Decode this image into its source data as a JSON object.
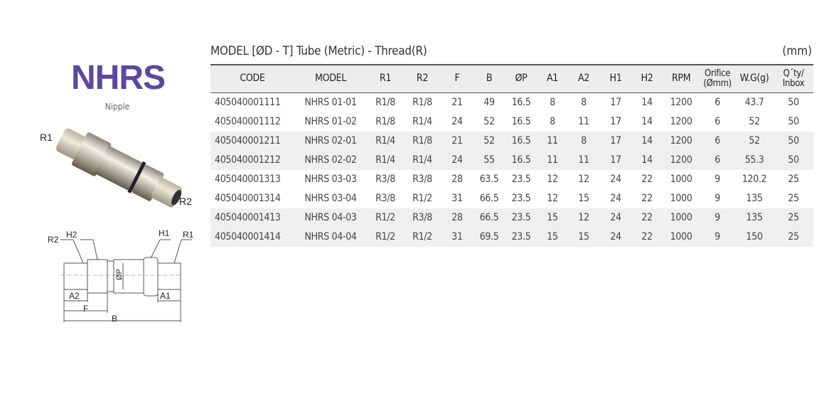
{
  "product": {
    "name": "NHRS",
    "subtitle": "Nipple",
    "photo_labels": {
      "r1": "R1",
      "r2": "R2"
    },
    "drawing_labels": {
      "r2": "R2",
      "h2": "H2",
      "h1": "H1",
      "r1": "R1",
      "op": "ØP",
      "a2": "A2",
      "f": "F",
      "b": "B",
      "a1": "A1"
    }
  },
  "table_title": "MODEL [ØD - T]  Tube (Metric) - Thread(R)",
  "unit": "(mm)",
  "columns": [
    "CODE",
    "MODEL",
    "R1",
    "R2",
    "F",
    "B",
    "ØP",
    "A1",
    "A2",
    "H1",
    "H2",
    "RPM",
    "Orifice\n(Ømm)",
    "W.G(g)",
    "Q´ty/\nInbox"
  ],
  "rows": [
    [
      "405040001111",
      "NHRS 01-01",
      "R1/8",
      "R1/8",
      "21",
      "49",
      "16.5",
      "8",
      "8",
      "17",
      "14",
      "1200",
      "6",
      "43.7",
      "50"
    ],
    [
      "405040001112",
      "NHRS 01-02",
      "R1/8",
      "R1/4",
      "24",
      "52",
      "16.5",
      "8",
      "11",
      "17",
      "14",
      "1200",
      "6",
      "52",
      "50"
    ],
    [
      "405040001211",
      "NHRS 02-01",
      "R1/4",
      "R1/8",
      "21",
      "52",
      "16.5",
      "11",
      "8",
      "17",
      "14",
      "1200",
      "6",
      "52",
      "50"
    ],
    [
      "405040001212",
      "NHRS 02-02",
      "R1/4",
      "R1/4",
      "24",
      "55",
      "16.5",
      "11",
      "11",
      "17",
      "14",
      "1200",
      "6",
      "55.3",
      "50"
    ],
    [
      "405040001313",
      "NHRS 03-03",
      "R3/8",
      "R3/8",
      "28",
      "63.5",
      "23.5",
      "12",
      "12",
      "24",
      "22",
      "1000",
      "9",
      "120.2",
      "25"
    ],
    [
      "405040001314",
      "NHRS 03-04",
      "R3/8",
      "R1/2",
      "31",
      "66.5",
      "23.5",
      "12",
      "15",
      "24",
      "22",
      "1000",
      "9",
      "135",
      "25"
    ],
    [
      "405040001413",
      "NHRS 04-03",
      "R1/2",
      "R3/8",
      "28",
      "66.5",
      "23.5",
      "15",
      "12",
      "24",
      "22",
      "1000",
      "9",
      "135",
      "25"
    ],
    [
      "405040001414",
      "NHRS 04-04",
      "R1/2",
      "R1/2",
      "31",
      "69.5",
      "23.5",
      "15",
      "15",
      "24",
      "22",
      "1000",
      "9",
      "150",
      "25"
    ]
  ],
  "colors": {
    "brand": "#5b48a0",
    "row_shade": "#efefef"
  }
}
